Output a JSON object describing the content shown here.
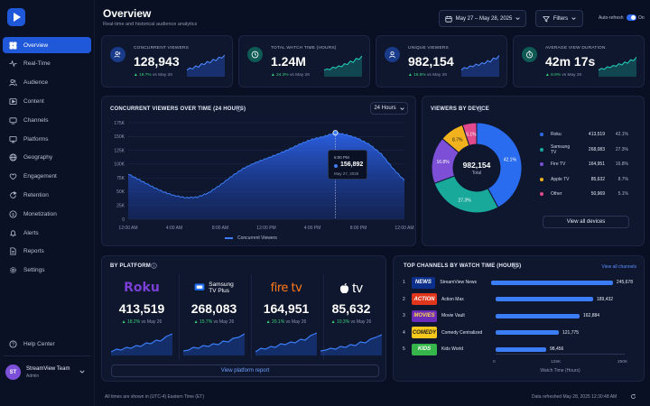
{
  "sidebar": {
    "items": [
      {
        "label": "Overview",
        "icon": "grid-icon",
        "active": true
      },
      {
        "label": "Real-Time",
        "icon": "pulse-icon"
      },
      {
        "label": "Audience",
        "icon": "users-icon"
      },
      {
        "label": "Content",
        "icon": "play-icon"
      },
      {
        "label": "Channels",
        "icon": "tv-icon"
      },
      {
        "label": "Platforms",
        "icon": "monitor-icon"
      },
      {
        "label": "Geography",
        "icon": "globe-icon"
      },
      {
        "label": "Engagement",
        "icon": "heart-icon"
      },
      {
        "label": "Retention",
        "icon": "refresh-icon"
      },
      {
        "label": "Monetization",
        "icon": "dollar-icon"
      },
      {
        "label": "Alerts",
        "icon": "bell-icon"
      },
      {
        "label": "Reports",
        "icon": "doc-icon"
      },
      {
        "label": "Settings",
        "icon": "gear-icon"
      }
    ],
    "help": "Help Center",
    "user": {
      "initials": "ST",
      "name": "StreamView Team",
      "role": "Admin"
    }
  },
  "header": {
    "title": "Overview",
    "subtitle": "Real-time and historical audience analytics",
    "date_range": "May 27 – May 28, 2025",
    "filters": "Filters",
    "auto_refresh": "Auto-refresh",
    "auto_refresh_state": "On"
  },
  "kpis": [
    {
      "label": "CONCURRENT VIEWERS",
      "value": "128,943",
      "delta": "▲ 18.7%",
      "vs": "vs May 26",
      "icon": "users-icon",
      "color": "#2f6bff",
      "trend": [
        3,
        4,
        3.6,
        5,
        4.4,
        6,
        5.6,
        7,
        6.4,
        8,
        7.4,
        9,
        8.6,
        10
      ]
    },
    {
      "label": "TOTAL WATCH TIME (HOURS)",
      "value": "1.24M",
      "delta": "▲ 24.3%",
      "vs": "vs May 26",
      "icon": "clock-icon",
      "color": "#16b3a3",
      "trend": [
        3,
        3.6,
        3.2,
        4.4,
        4,
        5,
        4.6,
        6,
        5.6,
        7.2,
        6.6,
        8.4,
        8,
        9.6
      ]
    },
    {
      "label": "UNIQUE VIEWERS",
      "value": "982,154",
      "delta": "▲ 16.5%",
      "vs": "vs May 26",
      "icon": "user-icon",
      "color": "#2f6bff",
      "trend": [
        3,
        4.2,
        3.8,
        5,
        4.6,
        5.8,
        5.2,
        6.4,
        6,
        7.4,
        6.8,
        8.6,
        8.2,
        9.8
      ]
    },
    {
      "label": "AVERAGE VIEW DURATION",
      "value": "42m 17s",
      "delta": "▲ 8.9%",
      "vs": "vs May 26",
      "icon": "timer-icon",
      "color": "#16b3a3",
      "trend": [
        3,
        3.8,
        3.4,
        4.6,
        4.2,
        5.2,
        4.8,
        6,
        5.4,
        6.8,
        6.2,
        7.8,
        7.4,
        9
      ]
    }
  ],
  "concurrent": {
    "title": "CONCURRENT VIEWERS OVER TIME (24 HOURS)",
    "range_select": "24 Hours",
    "legend": "Concurrent Viewers",
    "tooltip": {
      "time": "6:00 PM",
      "value": "156,892",
      "date": "May 27, 2025"
    },
    "color": "#3b7df7"
  },
  "chart_data": {
    "type": "area",
    "xlabel": "",
    "ylabel": "",
    "ylim": [
      0,
      175000
    ],
    "yticks": [
      "0",
      "25K",
      "50K",
      "75K",
      "100K",
      "125K",
      "150K",
      "175K"
    ],
    "xticks": [
      "12:00 AM",
      "4:00 AM",
      "8:00 AM",
      "12:00 PM",
      "4:00 PM",
      "8:00 PM",
      "12:00 AM"
    ],
    "x": [
      "12:00 AM",
      "1:00 AM",
      "2:00 AM",
      "3:00 AM",
      "4:00 AM",
      "5:00 AM",
      "6:00 AM",
      "7:00 AM",
      "8:00 AM",
      "9:00 AM",
      "10:00 AM",
      "11:00 AM",
      "12:00 PM",
      "1:00 PM",
      "2:00 PM",
      "3:00 PM",
      "4:00 PM",
      "5:00 PM",
      "6:00 PM",
      "7:00 PM",
      "8:00 PM",
      "9:00 PM",
      "10:00 PM",
      "11:00 PM",
      "12:00 AM"
    ],
    "series": [
      {
        "name": "Concurrent Viewers",
        "values": [
          82000,
          71000,
          60000,
          50000,
          43000,
          39000,
          40000,
          48000,
          62000,
          78000,
          92000,
          102000,
          110000,
          118000,
          127000,
          137000,
          145000,
          150000,
          156892,
          153000,
          146000,
          135000,
          118000,
          92000,
          70000
        ]
      }
    ]
  },
  "devices": {
    "title": "VIEWERS BY DEVICE",
    "total_value": "982,154",
    "total_label": "Total",
    "view_all": "View all devices",
    "items": [
      {
        "name": "Roku",
        "value": "413,519",
        "pct": "42.1%",
        "share": 42.1,
        "color": "#2a6cf0"
      },
      {
        "name": "Samsung TV",
        "value": "268,083",
        "pct": "27.3%",
        "share": 27.3,
        "color": "#19a99b"
      },
      {
        "name": "Fire TV",
        "value": "164,951",
        "pct": "16.8%",
        "share": 16.8,
        "color": "#7c4fd6"
      },
      {
        "name": "Apple TV",
        "value": "85,632",
        "pct": "8.7%",
        "share": 8.7,
        "color": "#f2b21e"
      },
      {
        "name": "Other",
        "value": "50,969",
        "pct": "5.1%",
        "share": 5.1,
        "color": "#e24a8d"
      }
    ]
  },
  "platforms": {
    "title": "BY PLATFORM",
    "report_link": "View platform report",
    "items": [
      {
        "logo": "Roku",
        "value": "413,519",
        "delta": "▲ 18.2%",
        "vs": "vs May 26"
      },
      {
        "logo": "Samsung TV Plus",
        "logo_line1": "Samsung",
        "logo_line2": "TV Plus",
        "value": "268,083",
        "delta": "▲ 15.7%",
        "vs": "vs May 26"
      },
      {
        "logo": "fire tv",
        "value": "164,951",
        "delta": "▲ 20.1%",
        "vs": "vs May 26"
      },
      {
        "logo": "tv",
        "value": "85,632",
        "delta": "▲ 10.3%",
        "vs": "vs May 26"
      }
    ]
  },
  "channels": {
    "title": "TOP CHANNELS BY WATCH TIME (HOURS)",
    "view_all": "View all channels",
    "axis_label": "Watch Time (Hours)",
    "ticks": [
      "0",
      "125K",
      "250K"
    ],
    "max": 250000,
    "items": [
      {
        "rank": "1",
        "logo": "NEWS",
        "name": "StreamView News",
        "value": "245,678",
        "num": 245678,
        "bg": "#0b2f8a",
        "fg": "#ffffff"
      },
      {
        "rank": "2",
        "logo": "ACTION",
        "name": "Action Max",
        "value": "189,432",
        "num": 189432,
        "bg": "#e0361c",
        "fg": "#ffffff"
      },
      {
        "rank": "3",
        "logo": "MOVIES",
        "name": "Movie Vault",
        "value": "162,884",
        "num": 162884,
        "bg": "#6a2bb8",
        "fg": "#ffd84a"
      },
      {
        "rank": "4",
        "logo": "COMEDY",
        "name": "Comedy Centralized",
        "value": "121,775",
        "num": 121775,
        "bg": "#f6c81c",
        "fg": "#1a1a1a"
      },
      {
        "rank": "5",
        "logo": "KIDS",
        "name": "Kids World",
        "value": "98,456",
        "num": 98456,
        "bg": "#36b54a",
        "fg": "#ffffff"
      }
    ]
  },
  "footer": {
    "timezone_note": "All times are shown in (UTC-4) Eastern Time (ET)",
    "refreshed": "Data refreshed May 28, 2025 12:30:48 AM"
  }
}
